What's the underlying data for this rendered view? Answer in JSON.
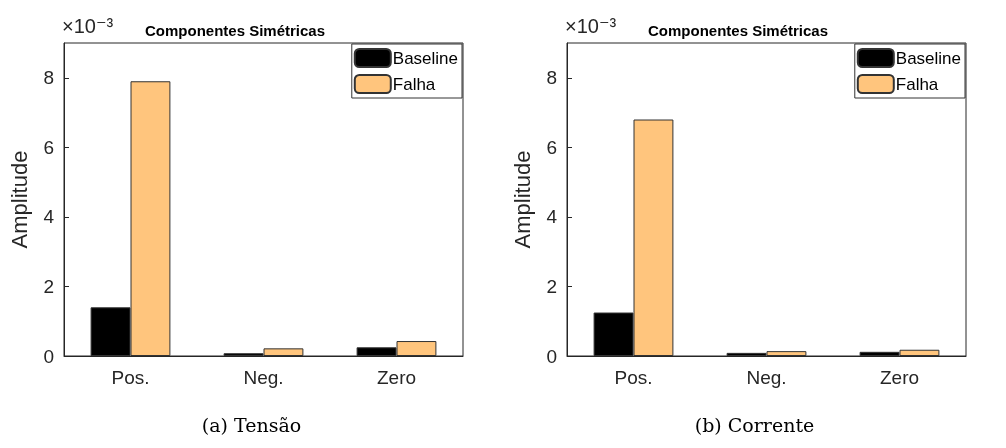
{
  "chart_data": [
    {
      "type": "bar",
      "title": "Componentes Simétricas",
      "ylabel": "Amplitude",
      "categories": [
        "Pos.",
        "Neg.",
        "Zero"
      ],
      "series": [
        {
          "name": "Baseline",
          "color": "#000000",
          "values": [
            1.4,
            0.08,
            0.25
          ]
        },
        {
          "name": "Falha",
          "color": "#ffc57d",
          "values": [
            7.9,
            0.22,
            0.43
          ]
        }
      ],
      "ylim": [
        0,
        9
      ],
      "yticks": [
        0,
        2,
        4,
        6,
        8
      ],
      "grid": false,
      "legend": "top right",
      "annotations": [
        "×10⁻³",
        "(a) Tensão"
      ]
    },
    {
      "type": "bar",
      "title": "Componentes Simétricas",
      "ylabel": "Amplitude",
      "categories": [
        "Pos.",
        "Neg.",
        "Zero"
      ],
      "series": [
        {
          "name": "Baseline",
          "color": "#000000",
          "values": [
            1.25,
            0.09,
            0.12
          ]
        },
        {
          "name": "Falha",
          "color": "#ffc57d",
          "values": [
            6.8,
            0.14,
            0.18
          ]
        }
      ],
      "ylim": [
        0,
        9
      ],
      "yticks": [
        0,
        2,
        4,
        6,
        8
      ],
      "grid": false,
      "legend": "top right",
      "annotations": [
        "×10⁻³",
        "(b) Corrente"
      ]
    }
  ]
}
